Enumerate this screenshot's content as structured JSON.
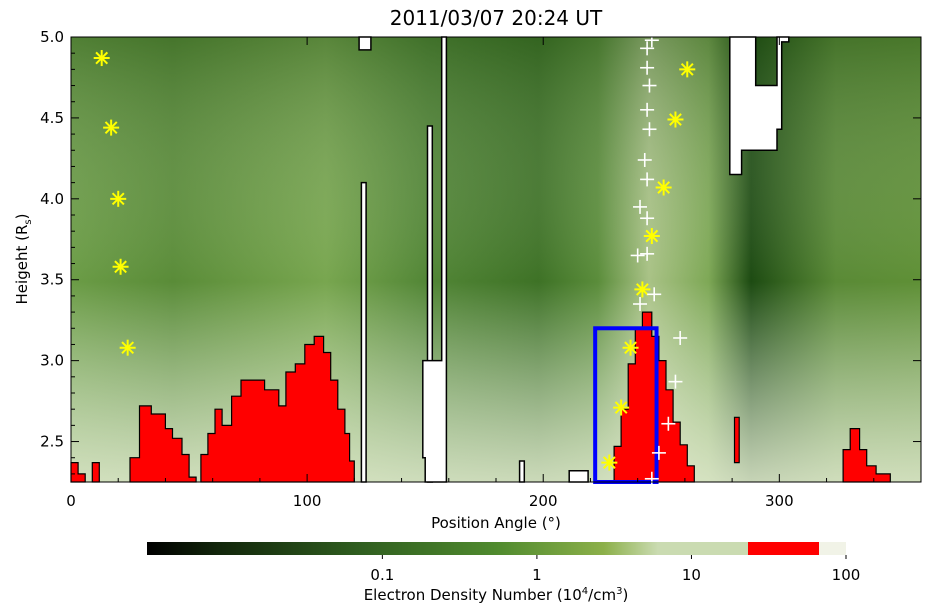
{
  "chart_data": {
    "type": "heatmap",
    "title": "2011/03/07 20:24 UT",
    "xlabel": "Position Angle (°)",
    "ylabel": "Heigeht (R",
    "ylabel_sub": "s",
    "ylabel_close": ")",
    "xlim": [
      0,
      360
    ],
    "ylim": [
      2.25,
      5.0
    ],
    "xticks": [
      0,
      100,
      200,
      300
    ],
    "yticks": [
      2.5,
      3.0,
      3.5,
      4.0,
      4.5,
      5.0
    ],
    "xtick_labels": [
      "0",
      "100",
      "200",
      "300"
    ],
    "ytick_labels": [
      "2.5",
      "3.0",
      "3.5",
      "4.0",
      "4.5",
      "5.0"
    ],
    "grid": false,
    "streamer_pa": 248,
    "saturated_regions": [
      [
        [
          0,
          2.25
        ],
        [
          0,
          2.37
        ],
        [
          3,
          2.37
        ],
        [
          3,
          2.3
        ],
        [
          6,
          2.3
        ],
        [
          6,
          2.25
        ]
      ],
      [
        [
          9,
          2.25
        ],
        [
          9,
          2.37
        ],
        [
          12,
          2.37
        ],
        [
          12,
          2.25
        ]
      ],
      [
        [
          25,
          2.25
        ],
        [
          25,
          2.4
        ],
        [
          29,
          2.4
        ],
        [
          29,
          2.72
        ],
        [
          34,
          2.72
        ],
        [
          34,
          2.67
        ],
        [
          40,
          2.67
        ],
        [
          40,
          2.58
        ],
        [
          43,
          2.58
        ],
        [
          43,
          2.52
        ],
        [
          47,
          2.52
        ],
        [
          47,
          2.42
        ],
        [
          50,
          2.42
        ],
        [
          50,
          2.28
        ],
        [
          53,
          2.28
        ],
        [
          53,
          2.25
        ]
      ],
      [
        [
          55,
          2.25
        ],
        [
          55,
          2.42
        ],
        [
          58,
          2.42
        ],
        [
          58,
          2.55
        ],
        [
          61,
          2.55
        ],
        [
          61,
          2.7
        ],
        [
          64,
          2.7
        ],
        [
          64,
          2.6
        ],
        [
          68,
          2.6
        ],
        [
          68,
          2.78
        ],
        [
          72,
          2.78
        ],
        [
          72,
          2.88
        ],
        [
          82,
          2.88
        ],
        [
          82,
          2.82
        ],
        [
          88,
          2.82
        ],
        [
          88,
          2.72
        ],
        [
          91,
          2.72
        ],
        [
          91,
          2.93
        ],
        [
          95,
          2.93
        ],
        [
          95,
          2.98
        ],
        [
          99,
          2.98
        ],
        [
          99,
          3.1
        ],
        [
          103,
          3.1
        ],
        [
          103,
          3.15
        ],
        [
          107,
          3.15
        ],
        [
          107,
          3.05
        ],
        [
          110,
          3.05
        ],
        [
          110,
          2.88
        ],
        [
          113,
          2.88
        ],
        [
          113,
          2.7
        ],
        [
          116,
          2.7
        ],
        [
          116,
          2.55
        ],
        [
          118,
          2.55
        ],
        [
          118,
          2.38
        ],
        [
          120,
          2.38
        ],
        [
          120,
          2.25
        ]
      ],
      [
        [
          230,
          2.25
        ],
        [
          230,
          2.47
        ],
        [
          233,
          2.47
        ],
        [
          233,
          2.7
        ],
        [
          236,
          2.7
        ],
        [
          236,
          2.98
        ],
        [
          239,
          2.98
        ],
        [
          239,
          3.2
        ],
        [
          242,
          3.2
        ],
        [
          242,
          3.3
        ],
        [
          246,
          3.3
        ],
        [
          246,
          3.15
        ],
        [
          249,
          3.15
        ],
        [
          249,
          3.0
        ],
        [
          252,
          3.0
        ],
        [
          252,
          2.82
        ],
        [
          255,
          2.82
        ],
        [
          255,
          2.62
        ],
        [
          258,
          2.62
        ],
        [
          258,
          2.48
        ],
        [
          261,
          2.48
        ],
        [
          261,
          2.35
        ],
        [
          264,
          2.35
        ],
        [
          264,
          2.25
        ]
      ],
      [
        [
          281,
          2.37
        ],
        [
          281,
          2.65
        ],
        [
          283,
          2.65
        ],
        [
          283,
          2.37
        ]
      ],
      [
        [
          327,
          2.25
        ],
        [
          327,
          2.45
        ],
        [
          330,
          2.45
        ],
        [
          330,
          2.58
        ],
        [
          334,
          2.58
        ],
        [
          334,
          2.45
        ],
        [
          337,
          2.45
        ],
        [
          337,
          2.35
        ],
        [
          341,
          2.35
        ],
        [
          341,
          2.3
        ],
        [
          347,
          2.3
        ],
        [
          347,
          2.25
        ]
      ]
    ],
    "masked_regions": [
      [
        [
          122,
          4.92
        ],
        [
          122,
          5.0
        ],
        [
          127,
          5.0
        ],
        [
          127,
          4.92
        ]
      ],
      [
        [
          123,
          2.25
        ],
        [
          123,
          4.1
        ],
        [
          125,
          4.1
        ],
        [
          125,
          2.25
        ]
      ],
      [
        [
          151,
          2.25
        ],
        [
          151,
          4.45
        ],
        [
          153,
          4.45
        ],
        [
          153,
          2.25
        ]
      ],
      [
        [
          150,
          2.25
        ],
        [
          150,
          2.4
        ],
        [
          149,
          2.4
        ],
        [
          149,
          3.0
        ],
        [
          157,
          3.0
        ],
        [
          157,
          5.0
        ],
        [
          159,
          5.0
        ],
        [
          159,
          2.25
        ]
      ],
      [
        [
          279,
          4.15
        ],
        [
          279,
          5.0
        ],
        [
          290,
          5.0
        ],
        [
          290,
          4.7
        ],
        [
          299,
          4.7
        ],
        [
          299,
          5.0
        ],
        [
          304,
          5.0
        ],
        [
          304,
          4.97
        ],
        [
          301,
          4.97
        ],
        [
          301,
          4.43
        ],
        [
          299,
          4.43
        ],
        [
          299,
          4.3
        ],
        [
          284,
          4.3
        ],
        [
          284,
          4.15
        ]
      ],
      [
        [
          190,
          2.25
        ],
        [
          190,
          2.38
        ],
        [
          192,
          2.38
        ],
        [
          192,
          2.25
        ]
      ],
      [
        [
          211,
          2.25
        ],
        [
          211,
          2.32
        ],
        [
          219,
          2.32
        ],
        [
          219,
          2.25
        ]
      ]
    ],
    "series": [
      {
        "marker": "asterisk",
        "color": "#ffff00",
        "points": [
          [
            13,
            4.87
          ],
          [
            17,
            4.44
          ],
          [
            20,
            4.0
          ],
          [
            21,
            3.58
          ],
          [
            24,
            3.08
          ],
          [
            228,
            2.37
          ],
          [
            233,
            2.71
          ],
          [
            237,
            3.08
          ],
          [
            242,
            3.44
          ],
          [
            246,
            3.77
          ],
          [
            251,
            4.07
          ],
          [
            256,
            4.49
          ],
          [
            261,
            4.8
          ]
        ]
      },
      {
        "marker": "plus",
        "color": "#ffffff",
        "points": [
          [
            246,
            2.27
          ],
          [
            249,
            2.43
          ],
          [
            253,
            2.61
          ],
          [
            256,
            2.87
          ],
          [
            258,
            3.14
          ],
          [
            247,
            3.41
          ],
          [
            241,
            3.35
          ],
          [
            240,
            3.65
          ],
          [
            244,
            3.66
          ],
          [
            241,
            3.95
          ],
          [
            244,
            3.88
          ],
          [
            244,
            4.12
          ],
          [
            243,
            4.24
          ],
          [
            245,
            4.43
          ],
          [
            244,
            4.55
          ],
          [
            245,
            4.7
          ],
          [
            244,
            4.81
          ],
          [
            244,
            4.93
          ],
          [
            246,
            4.98
          ]
        ]
      }
    ],
    "highlight_box": {
      "color": "#0000ff",
      "x": [
        222,
        248
      ],
      "y": [
        2.25,
        3.2
      ]
    },
    "colorbar": {
      "label": "Electron Density Number (10",
      "label_sup": "4",
      "label_end": "/cm",
      "label_sup2": "3",
      "label_close": ")",
      "ticks": [
        0.1,
        1,
        10,
        100
      ],
      "tick_labels": [
        "0.1",
        "1",
        "10",
        "100"
      ],
      "range": [
        0.003,
        100
      ],
      "scale": "log",
      "colors": {
        "low": "#000000",
        "mid": "#5b8c35",
        "high": "#cadbb1",
        "saturated": "#ff0000",
        "top": "#f1f3e7"
      }
    }
  }
}
